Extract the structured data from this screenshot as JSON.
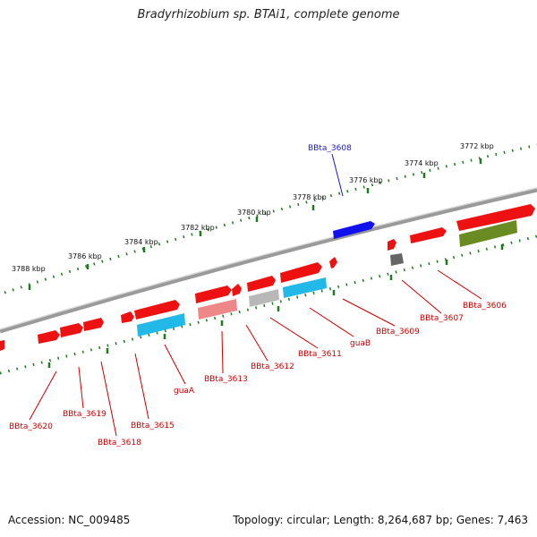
{
  "title": "Bradyrhizobium sp. BTAi1, complete genome",
  "footer": {
    "accession": "Accession: NC_009485",
    "topology": "Topology: circular; Length: 8,264,687 bp; Genes: 7,463"
  },
  "scale_labels": [
    "3788 kbp",
    "3786 kbp",
    "3784 kbp",
    "3782 kbp",
    "3780 kbp",
    "3778 kbp",
    "3776 kbp",
    "3774 kbp",
    "3772 kbp"
  ],
  "gene_labels": [
    {
      "text": "BBta_3608",
      "color": "#1b1bbf"
    },
    {
      "text": "BBta_3606",
      "color": "#cc0000"
    },
    {
      "text": "BBta_3607",
      "color": "#cc0000"
    },
    {
      "text": "BBta_3609",
      "color": "#cc0000"
    },
    {
      "text": "guaB",
      "color": "#cc0000"
    },
    {
      "text": "BBta_3611",
      "color": "#cc0000"
    },
    {
      "text": "BBta_3612",
      "color": "#cc0000"
    },
    {
      "text": "BBta_3613",
      "color": "#cc0000"
    },
    {
      "text": "guaA",
      "color": "#cc0000"
    },
    {
      "text": "BBta_3615",
      "color": "#cc0000"
    },
    {
      "text": "BBta_3618",
      "color": "#cc0000"
    },
    {
      "text": "BBta_3619",
      "color": "#cc0000"
    },
    {
      "text": "BBta_3620",
      "color": "#cc0000"
    }
  ],
  "colors": {
    "backbone": "#808080",
    "tick": "#1f7a1f",
    "gene_red": "#ee1111",
    "gene_blue": "#1111ee",
    "gene_cyan": "#22b8e8",
    "gene_olive": "#6a8a22",
    "gene_pink": "#ee8888",
    "gene_lightgray": "#b8b8b8",
    "gene_darkgray": "#666666"
  }
}
